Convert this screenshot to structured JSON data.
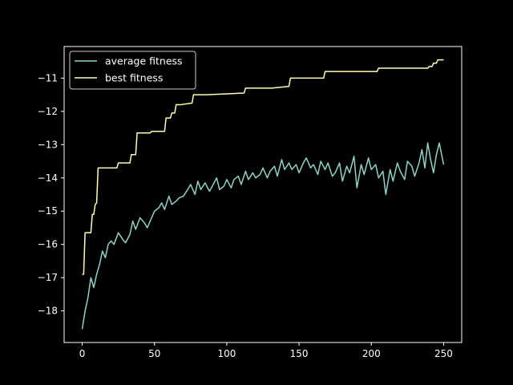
{
  "chart_data": {
    "type": "line",
    "title": "",
    "xlabel": "",
    "ylabel": "",
    "xlim": [
      -12.5,
      262.5
    ],
    "ylim": [
      -18.95,
      -10.05
    ],
    "xticks": [
      0,
      50,
      100,
      150,
      200,
      250
    ],
    "yticks": [
      -18,
      -17,
      -16,
      -15,
      -14,
      -13,
      -12,
      -11
    ],
    "grid": false,
    "legend_position": "upper left",
    "colors": {
      "background": "#000000",
      "axes": "#ffffff",
      "text": "#ffffff"
    },
    "series": [
      {
        "name": "average fitness",
        "color": "#8dd3c7",
        "x": [
          0,
          2,
          4,
          6,
          8,
          10,
          12,
          14,
          16,
          18,
          20,
          22,
          25,
          28,
          30,
          33,
          35,
          37,
          40,
          43,
          45,
          48,
          50,
          53,
          55,
          57,
          60,
          62,
          65,
          67,
          70,
          73,
          75,
          78,
          80,
          82,
          85,
          88,
          90,
          93,
          95,
          98,
          100,
          103,
          105,
          108,
          110,
          113,
          115,
          118,
          120,
          123,
          125,
          128,
          130,
          133,
          135,
          138,
          140,
          143,
          145,
          148,
          150,
          153,
          155,
          158,
          160,
          163,
          165,
          168,
          170,
          173,
          175,
          178,
          180,
          183,
          185,
          188,
          190,
          193,
          195,
          198,
          200,
          203,
          205,
          208,
          210,
          213,
          215,
          218,
          220,
          223,
          225,
          228,
          230,
          233,
          235,
          237,
          239,
          241,
          243,
          245,
          247,
          250
        ],
        "y": [
          -18.55,
          -18.0,
          -17.6,
          -17.0,
          -17.3,
          -16.9,
          -16.6,
          -16.2,
          -16.4,
          -16.0,
          -15.9,
          -16.0,
          -15.65,
          -15.85,
          -15.95,
          -15.7,
          -15.3,
          -15.55,
          -15.2,
          -15.35,
          -15.5,
          -15.2,
          -15.0,
          -14.9,
          -14.75,
          -14.95,
          -14.55,
          -14.8,
          -14.7,
          -14.6,
          -14.55,
          -14.35,
          -14.2,
          -14.5,
          -14.1,
          -14.35,
          -14.15,
          -14.4,
          -14.25,
          -14.0,
          -14.35,
          -14.25,
          -14.05,
          -14.3,
          -14.05,
          -13.95,
          -14.2,
          -13.8,
          -14.05,
          -13.85,
          -14.0,
          -13.9,
          -13.7,
          -14.0,
          -13.8,
          -13.65,
          -13.95,
          -13.45,
          -13.75,
          -13.55,
          -13.75,
          -13.6,
          -13.85,
          -13.55,
          -13.4,
          -13.7,
          -13.6,
          -13.9,
          -13.5,
          -13.75,
          -13.55,
          -13.95,
          -13.85,
          -13.55,
          -14.1,
          -13.65,
          -13.85,
          -13.35,
          -14.3,
          -13.6,
          -13.9,
          -13.4,
          -13.75,
          -13.6,
          -14.0,
          -13.8,
          -14.5,
          -13.75,
          -14.1,
          -13.55,
          -13.8,
          -14.05,
          -13.5,
          -13.65,
          -13.95,
          -13.55,
          -13.15,
          -13.7,
          -12.95,
          -13.45,
          -13.85,
          -13.3,
          -12.95,
          -13.6
        ]
      },
      {
        "name": "best fitness",
        "color": "#ffffb3",
        "x": [
          0,
          1,
          2,
          3,
          6,
          7,
          8,
          9,
          10,
          11,
          12,
          24,
          25,
          33,
          34,
          37,
          38,
          39,
          47,
          48,
          57,
          58,
          61,
          62,
          64,
          65,
          67,
          68,
          76,
          77,
          85,
          86,
          112,
          113,
          130,
          131,
          143,
          144,
          167,
          168,
          204,
          205,
          239,
          240,
          242,
          243,
          245,
          246,
          250
        ],
        "y": [
          -16.9,
          -16.9,
          -15.65,
          -15.65,
          -15.65,
          -15.1,
          -15.1,
          -14.8,
          -14.75,
          -13.7,
          -13.7,
          -13.7,
          -13.55,
          -13.55,
          -13.3,
          -13.3,
          -12.65,
          -12.65,
          -12.65,
          -12.6,
          -12.6,
          -12.2,
          -12.2,
          -12.05,
          -12.05,
          -11.8,
          -11.8,
          -11.8,
          -11.75,
          -11.5,
          -11.5,
          -11.5,
          -11.45,
          -11.3,
          -11.3,
          -11.3,
          -11.25,
          -11.0,
          -11.0,
          -10.8,
          -10.8,
          -10.7,
          -10.7,
          -10.65,
          -10.65,
          -10.55,
          -10.55,
          -10.45,
          -10.45
        ]
      }
    ]
  }
}
